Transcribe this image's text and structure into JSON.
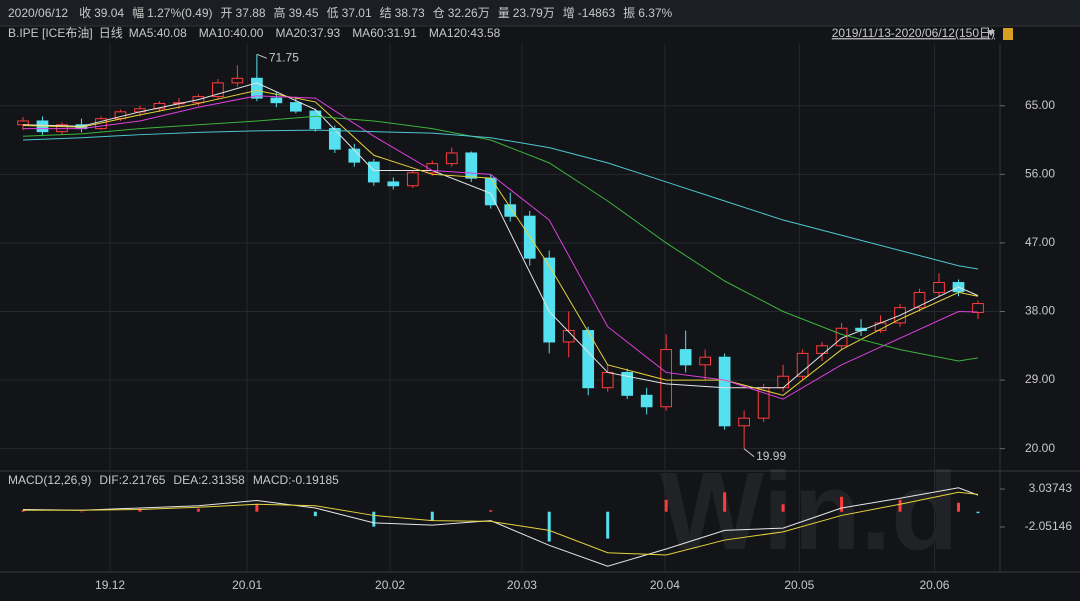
{
  "header": {
    "items": [
      {
        "label": "2020/06/12",
        "color": "#d0d0d0"
      },
      {
        "label": "收",
        "value": "39.04",
        "color": "#ff4a4a"
      },
      {
        "label": "幅",
        "value": "1.27%(0.49)",
        "color": "#ff4a4a"
      },
      {
        "label": "开",
        "value": "37.88",
        "color": "#3cc83c"
      },
      {
        "label": "高",
        "value": "39.45",
        "color": "#ff4a4a"
      },
      {
        "label": "低",
        "value": "37.01",
        "color": "#3cc83c"
      },
      {
        "label": "结",
        "value": "38.73",
        "color": "#ff4a4a"
      },
      {
        "label": "仓",
        "value": "32.26万",
        "color": "#d0d0d0"
      },
      {
        "label": "量",
        "value": "23.79万",
        "color": "#d0d0d0"
      },
      {
        "label": "增",
        "value": "-14863",
        "color": "#3cc83c"
      },
      {
        "label": "振",
        "value": "6.37%",
        "color": "#d0d0d0"
      }
    ],
    "range": "2019/11/13-2020/06/12(150日)",
    "watermark": "Win.d"
  },
  "chart_data": [
    {
      "type": "candlestick",
      "instrument": "B.IPE [ICE布油]",
      "period": "日线",
      "period_color": "#ff4a4a",
      "up_color": "#ff3c3c",
      "down_color": "#54e0ee",
      "x": [
        2,
        5,
        8,
        11,
        14,
        17,
        20,
        23,
        26,
        29,
        32,
        35,
        38,
        41,
        44,
        47,
        50,
        53,
        56,
        59,
        62,
        65,
        68,
        71,
        74,
        77,
        80,
        83,
        86,
        89,
        92,
        95,
        98,
        101,
        104,
        107,
        110,
        113,
        116,
        119,
        122,
        125,
        128,
        131,
        134,
        137,
        140,
        143,
        146,
        149
      ],
      "open": [
        62.5,
        63.0,
        61.6,
        62.5,
        62.0,
        63.3,
        64.2,
        64.6,
        65.3,
        65.4,
        66.2,
        68.0,
        68.6,
        66.0,
        65.4,
        64.3,
        62.0,
        59.3,
        57.6,
        55.0,
        54.5,
        56.2,
        57.4,
        58.8,
        55.5,
        52.0,
        50.5,
        45.0,
        34.0,
        35.5,
        28.0,
        30.0,
        27.0,
        25.5,
        33.0,
        31.0,
        32.0,
        23.0,
        24.0,
        28.0,
        29.5,
        32.5,
        33.5,
        35.8,
        35.5,
        36.5,
        38.5,
        40.5,
        41.8,
        37.88
      ],
      "high": [
        63.5,
        63.6,
        62.8,
        63.3,
        63.6,
        64.5,
        65.0,
        65.6,
        66.0,
        66.5,
        68.5,
        70.3,
        71.75,
        66.8,
        66.2,
        64.6,
        62.4,
        60.0,
        58.0,
        55.6,
        56.5,
        57.8,
        59.5,
        59.0,
        56.0,
        53.6,
        51.2,
        46.0,
        38.0,
        36.0,
        31.0,
        30.5,
        28.0,
        35.0,
        35.5,
        33.0,
        32.5,
        25.0,
        28.5,
        31.0,
        33.0,
        34.0,
        36.5,
        37.0,
        37.5,
        39.0,
        41.0,
        43.0,
        42.2,
        39.45
      ],
      "low": [
        61.8,
        61.0,
        61.2,
        61.5,
        61.8,
        63.0,
        63.6,
        64.2,
        64.6,
        65.0,
        65.8,
        67.5,
        65.6,
        64.8,
        64.0,
        61.6,
        58.8,
        57.0,
        54.5,
        54.0,
        54.2,
        55.8,
        57.0,
        55.0,
        51.5,
        49.8,
        44.0,
        32.5,
        32.0,
        27.0,
        27.5,
        26.5,
        24.5,
        25.0,
        30.0,
        29.0,
        22.5,
        19.99,
        23.5,
        27.5,
        29.0,
        31.5,
        33.0,
        34.8,
        35.2,
        36.0,
        38.0,
        40.0,
        40.0,
        37.01
      ],
      "close": [
        63.0,
        61.6,
        62.5,
        62.0,
        63.3,
        64.2,
        64.6,
        65.3,
        65.4,
        66.2,
        68.0,
        68.6,
        66.0,
        65.4,
        64.3,
        62.0,
        59.3,
        57.6,
        55.0,
        54.5,
        56.2,
        57.4,
        58.8,
        55.5,
        52.0,
        50.5,
        45.0,
        34.0,
        35.5,
        28.0,
        30.0,
        27.0,
        25.5,
        33.0,
        31.0,
        32.0,
        23.0,
        24.0,
        28.0,
        29.5,
        32.5,
        33.5,
        35.8,
        35.5,
        36.5,
        38.5,
        40.5,
        41.8,
        40.6,
        39.04
      ],
      "annotations": [
        {
          "point": 12,
          "field": "high"
        },
        {
          "point": 37,
          "field": "low"
        }
      ],
      "lines": [
        {
          "name": "MA5:40.08",
          "color": "#e6e6e6",
          "x": [
            2,
            11,
            20,
            29,
            38,
            47,
            56,
            65,
            74,
            83,
            92,
            101,
            110,
            119,
            128,
            137,
            146,
            149
          ],
          "values": [
            62.5,
            62.3,
            64.2,
            65.8,
            68.0,
            64.5,
            56.5,
            56.5,
            53.5,
            38,
            30,
            28.5,
            28,
            28,
            34.5,
            37.5,
            41.2,
            40.08
          ]
        },
        {
          "name": "MA10:40.00",
          "color": "#e8d23c",
          "x": [
            2,
            11,
            20,
            29,
            38,
            47,
            56,
            65,
            74,
            83,
            92,
            101,
            110,
            119,
            128,
            137,
            146,
            149
          ],
          "values": [
            62.4,
            62.2,
            63.8,
            65.3,
            67.0,
            65.5,
            58.5,
            56,
            55.5,
            44,
            31,
            29,
            29,
            27,
            33,
            37,
            40.5,
            40.0
          ]
        },
        {
          "name": "MA20:37.93",
          "color": "#e040e0",
          "x": [
            2,
            11,
            20,
            29,
            38,
            47,
            56,
            65,
            74,
            83,
            92,
            101,
            110,
            119,
            128,
            137,
            146,
            149
          ],
          "values": [
            62,
            62,
            63,
            64.8,
            66.3,
            66,
            61,
            56.5,
            56,
            50,
            36,
            30,
            29,
            26.5,
            31,
            34.5,
            38,
            37.93
          ]
        },
        {
          "name": "MA60:31.91",
          "color": "#3cb43c",
          "x": [
            2,
            11,
            20,
            29,
            38,
            47,
            56,
            65,
            74,
            83,
            92,
            101,
            110,
            119,
            128,
            137,
            146,
            149
          ],
          "values": [
            61,
            61.3,
            62,
            62.5,
            63,
            63.6,
            63,
            62,
            60.5,
            57.5,
            52.5,
            47,
            42,
            38,
            35,
            33,
            31.5,
            31.91
          ]
        },
        {
          "name": "MA120:43.58",
          "color": "#4cc8d0",
          "x": [
            2,
            11,
            20,
            29,
            38,
            47,
            56,
            65,
            74,
            83,
            92,
            101,
            110,
            119,
            128,
            137,
            146,
            149
          ],
          "values": [
            60.5,
            60.8,
            61.2,
            61.5,
            61.7,
            61.8,
            61.6,
            61.4,
            60.8,
            59.5,
            57.5,
            55,
            52.5,
            50,
            48,
            46,
            44,
            43.58
          ]
        }
      ],
      "xlim": [
        0,
        149
      ],
      "ylim": [
        17.2,
        73.1
      ],
      "yticks": [
        {
          "value": 20,
          "label": "20.00"
        },
        {
          "value": 29,
          "label": "29.00"
        },
        {
          "value": 38,
          "label": "38.00"
        },
        {
          "value": 47,
          "label": "47.00"
        },
        {
          "value": 56,
          "label": "56.00"
        },
        {
          "value": 65,
          "label": "65.00"
        }
      ],
      "grid": true
    },
    {
      "type": "macd",
      "title": "MACD(12,26,9)",
      "x": [
        2,
        11,
        20,
        29,
        38,
        47,
        56,
        65,
        74,
        83,
        92,
        101,
        110,
        119,
        128,
        137,
        146,
        149
      ],
      "series": [
        {
          "name": "DIF:2.21765",
          "color": "#e6e6e6",
          "values": [
            0.3,
            0.2,
            0.5,
            0.8,
            1.5,
            0.5,
            -1.5,
            -1.8,
            -1.2,
            -4.5,
            -7.3,
            -5,
            -2.5,
            -2.2,
            0.5,
            1.8,
            3.2,
            2.21765
          ]
        },
        {
          "name": "DEA:2.31358",
          "color": "#e8d23c",
          "values": [
            0.2,
            0.2,
            0.3,
            0.6,
            1.0,
            0.8,
            -0.5,
            -1.2,
            -1.3,
            -2.5,
            -5.5,
            -5.8,
            -3.8,
            -2.7,
            -0.5,
            1.0,
            2.6,
            2.31358
          ]
        }
      ],
      "histogram": {
        "name": "MACD:-0.19185",
        "color": "#e040e0",
        "up_color": "#ff3c3c",
        "down_color": "#54e0ee",
        "values": [
          0.2,
          0,
          0.4,
          0.4,
          1,
          -0.6,
          -2,
          -1.2,
          0.2,
          -4,
          -3.6,
          1.6,
          2.6,
          1,
          2,
          1.6,
          1.2,
          -0.19185
        ]
      },
      "xlim": [
        0,
        149
      ],
      "ylim": [
        -7.81,
        5.05
      ],
      "yticks": [
        -2.05146,
        3.03743
      ],
      "xticks": [
        {
          "value": 15.4,
          "label": "19.12"
        },
        {
          "value": 36.5,
          "label": "20.01"
        },
        {
          "value": 58.5,
          "label": "20.02"
        },
        {
          "value": 78.8,
          "label": "20.03"
        },
        {
          "value": 100.8,
          "label": "20.04"
        },
        {
          "value": 121.5,
          "label": "20.05"
        },
        {
          "value": 142.3,
          "label": "20.06"
        }
      ]
    }
  ]
}
